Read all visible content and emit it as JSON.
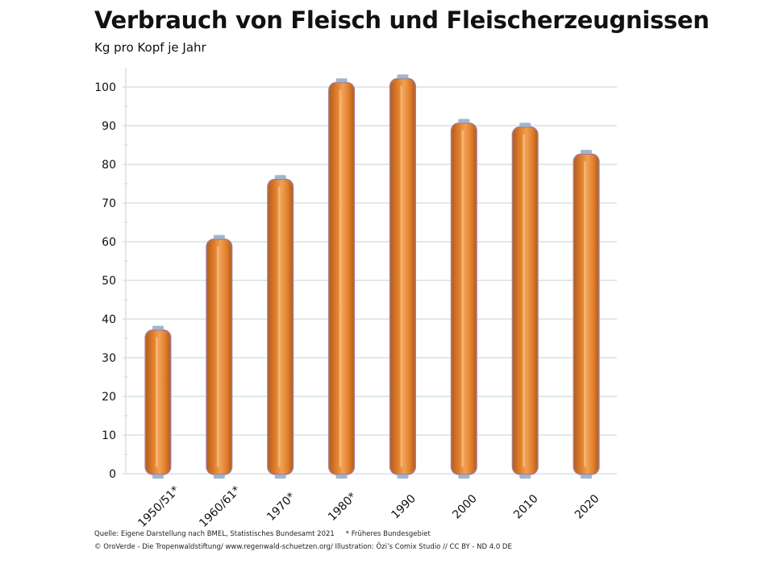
{
  "title": "Verbrauch von Fleisch und Fleischerzeugnissen",
  "subtitle": "Kg pro Kopf je Jahr",
  "footer": {
    "source": "Quelle: Eigene Darstellung nach BMEL, Statistisches Bundesamt 2021",
    "footnote": "* Früheres Bundesgebiet",
    "credits": "© OroVerde - Die Tropenwaldstiftung/ www.regenwald-schuetzen.org/ Illustration: Özi’s Comix Studio //  CC BY - ND  4.0 DE"
  },
  "colors": {
    "sausage": "#e07f2c",
    "sausage_dark": "#b85f1d",
    "sausage_light": "#f0a055",
    "casing": "#a87888",
    "grid": "#d3e4e2",
    "clip": "#9fb6cc"
  },
  "chart_data": {
    "type": "bar",
    "categories": [
      "1950/51*",
      "1960/61*",
      "1970*",
      "1980*",
      "1990",
      "2000",
      "2010",
      "2020"
    ],
    "values": [
      37,
      60.5,
      76,
      101,
      102,
      90.5,
      89.5,
      82.5
    ],
    "yticks": [
      0,
      10,
      20,
      30,
      40,
      50,
      60,
      70,
      80,
      90,
      100
    ],
    "ylim": [
      0,
      105
    ],
    "grid": true,
    "xlabel": "",
    "ylabel": ""
  }
}
